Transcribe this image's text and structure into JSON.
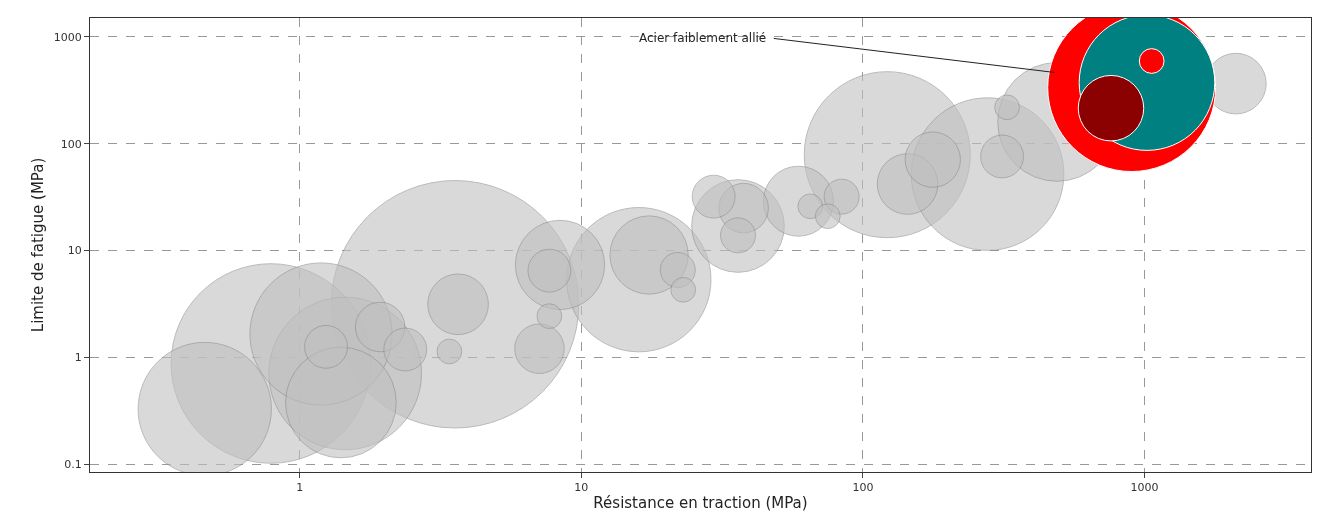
{
  "chart_data": {
    "type": "bubble",
    "xlabel": "Résistance en traction (MPa)",
    "ylabel": "Limite de fatigue (MPa)",
    "log": "xy",
    "xlim": [
      0.18,
      3900
    ],
    "ylim": [
      0.085,
      1500
    ],
    "xticks": [
      1,
      10,
      100,
      1000
    ],
    "yticks": [
      0.1,
      1,
      10,
      100,
      1000
    ],
    "grid": true,
    "annotations": [
      "Acier faiblement allié"
    ],
    "series": [
      {
        "color": "#c0c0c0",
        "x": [
          3.56,
          0.79,
          122,
          1.45,
          277,
          16,
          1.19,
          0.46,
          489,
          1.4,
          36,
          8.4,
          17.4,
          59,
          3.65,
          144,
          2110,
          177,
          7.1,
          1.93,
          37.7,
          1.24,
          2.37,
          7.7,
          29.5,
          312,
          22,
          36,
          84,
          3.4,
          7.7,
          23,
          65,
          75,
          325
        ],
        "values": [
          3.15,
          0.88,
          79,
          0.71,
          52,
          5.35,
          1.66,
          0.33,
          160,
          0.38,
          17,
          7.35,
          9.1,
          29,
          3.15,
          42,
          365,
          71,
          1.21,
          1.93,
          25,
          1.26,
          1.19,
          6.5,
          32,
          76,
          6.6,
          13.9,
          32,
          1.14,
          2.44,
          4.3,
          26,
          21,
          219
        ],
        "sizes": [
          1.0,
          0.65,
          0.45,
          0.38,
          0.38,
          0.34,
          0.33,
          0.29,
          0.23,
          0.2,
          0.14,
          0.13,
          0.1,
          0.08,
          0.06,
          0.06,
          0.06,
          0.05,
          0.04,
          0.04,
          0.04,
          0.03,
          0.03,
          0.03,
          0.03,
          0.03,
          0.02,
          0.02,
          0.02,
          0.01,
          0.01,
          0.01,
          0.01,
          0.01,
          0.01
        ]
      },
      {
        "color": "#ff0000",
        "x": [
          900
        ],
        "values": [
          335
        ],
        "sizes": [
          0.46
        ]
      },
      {
        "color": "#008080",
        "x": [
          1020
        ],
        "values": [
          373
        ],
        "sizes": [
          0.3
        ]
      },
      {
        "color": "#8b0000",
        "x": [
          760
        ],
        "values": [
          215
        ],
        "sizes": [
          0.07
        ]
      },
      {
        "color": "#ff0000",
        "x": [
          1060
        ],
        "values": [
          594
        ],
        "sizes": [
          0.01
        ]
      }
    ]
  }
}
